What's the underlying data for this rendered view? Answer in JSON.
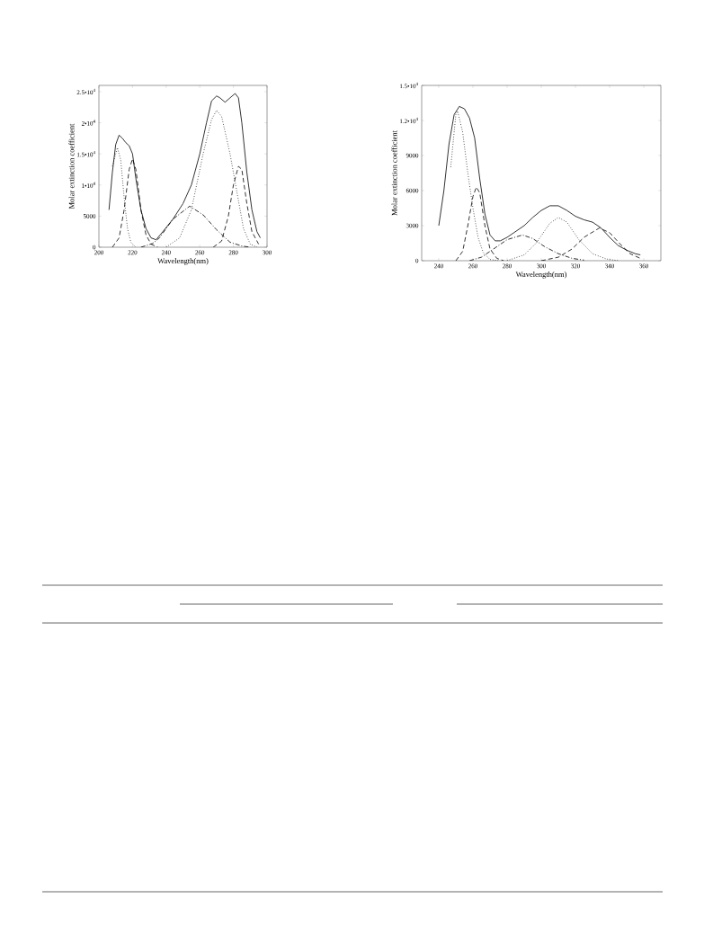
{
  "chart_data": [
    {
      "type": "line",
      "xlabel": "Wavelength(nm)",
      "ylabel": "Molar extinction coefficient",
      "xlim": [
        200,
        300
      ],
      "ylim": [
        0,
        26000
      ],
      "xticks": [
        200,
        220,
        240,
        260,
        280,
        300
      ],
      "yticks": [
        0,
        5000,
        {
          "value": 10000,
          "label": "1•10$^{4}$"
        },
        {
          "value": 15000,
          "label": "1.5•10$^{4}$"
        },
        {
          "value": 20000,
          "label": "2•10$^{4}$"
        },
        {
          "value": 25000,
          "label": "2.5•10$^{4}$"
        }
      ],
      "series": [
        {
          "color": "#000000",
          "line_style": "solid",
          "x": [
            206,
            208,
            210,
            212,
            214,
            216,
            218,
            220,
            222,
            225,
            228,
            231,
            234,
            238,
            244,
            250,
            255,
            260,
            264,
            267,
            270,
            272,
            275,
            278,
            281,
            283,
            285,
            288,
            291,
            294,
            296
          ],
          "values": [
            6000,
            12000,
            16500,
            18000,
            17500,
            16800,
            16300,
            15000,
            11000,
            6000,
            3000,
            1500,
            1200,
            2500,
            4500,
            7000,
            10000,
            15000,
            20000,
            23500,
            24300,
            24000,
            23300,
            24000,
            24700,
            24000,
            20000,
            12000,
            6000,
            2500,
            1500
          ]
        },
        {
          "color": "#000000",
          "line_style": "dotted",
          "x": [
            208,
            211,
            213,
            215,
            217,
            219,
            222
          ],
          "values": [
            13000,
            16000,
            14000,
            8000,
            3000,
            800,
            0
          ]
        },
        {
          "color": "#000000",
          "line_style": "dashed",
          "x": [
            208,
            212,
            215,
            218,
            220,
            222,
            225,
            228,
            231,
            235
          ],
          "values": [
            0,
            1500,
            6000,
            12500,
            14200,
            12500,
            6000,
            2000,
            500,
            0
          ]
        },
        {
          "color": "#000000",
          "line_style": "dashdot",
          "x": [
            225,
            232,
            236,
            244,
            254,
            262,
            270,
            278,
            285,
            290
          ],
          "values": [
            0,
            600,
            1500,
            4500,
            6600,
            5200,
            2800,
            800,
            200,
            0
          ]
        },
        {
          "color": "#000000",
          "line_style": "dotted",
          "x": [
            240,
            248,
            255,
            262,
            267,
            270,
            273,
            278,
            282,
            286,
            290,
            294
          ],
          "values": [
            0,
            1500,
            6000,
            15000,
            20500,
            22000,
            21000,
            15000,
            9000,
            3000,
            500,
            0
          ]
        },
        {
          "color": "#000000",
          "line_style": "dashed",
          "x": [
            268,
            273,
            277,
            280,
            283,
            285,
            288,
            291,
            295
          ],
          "values": [
            0,
            1000,
            5000,
            10000,
            13000,
            12500,
            7000,
            2500,
            500
          ]
        }
      ]
    },
    {
      "type": "line",
      "xlabel": "Wavelength(nm)",
      "ylabel": "Molar extinction coefficient",
      "xlim": [
        230,
        370
      ],
      "ylim": [
        0,
        15000
      ],
      "xticks": [
        240,
        260,
        280,
        300,
        320,
        340,
        360
      ],
      "yticks": [
        0,
        3000,
        6000,
        9000,
        {
          "value": 12000,
          "label": "1.2•10$^{4}$"
        },
        {
          "value": 15000,
          "label": "1.5•10$^{4}$"
        }
      ],
      "series": [
        {
          "color": "#000000",
          "line_style": "solid",
          "x": [
            240,
            243,
            246,
            249,
            252,
            255,
            258,
            261,
            264,
            267,
            270,
            273,
            276,
            280,
            285,
            290,
            295,
            300,
            305,
            310,
            315,
            320,
            325,
            330,
            335,
            340,
            345,
            350,
            355,
            358
          ],
          "values": [
            3000,
            6000,
            10000,
            12500,
            13200,
            13000,
            12200,
            10500,
            7000,
            4000,
            2200,
            1700,
            1700,
            2000,
            2500,
            3000,
            3700,
            4300,
            4700,
            4700,
            4300,
            3800,
            3500,
            3300,
            2800,
            2000,
            1300,
            900,
            600,
            500
          ]
        },
        {
          "color": "#000000",
          "line_style": "dotted",
          "x": [
            247,
            250,
            251,
            254,
            257,
            260,
            263,
            266,
            270,
            275
          ],
          "values": [
            8000,
            12500,
            12800,
            11000,
            7500,
            4500,
            2000,
            700,
            100,
            0
          ]
        },
        {
          "color": "#000000",
          "line_style": "dashed",
          "x": [
            250,
            254,
            257,
            260,
            262,
            264,
            267,
            270,
            274,
            278
          ],
          "values": [
            0,
            800,
            3000,
            5500,
            6300,
            5800,
            3000,
            1000,
            200,
            0
          ]
        },
        {
          "color": "#000000",
          "line_style": "dashdot",
          "x": [
            258,
            265,
            272,
            280,
            289,
            295,
            302,
            310,
            318,
            325
          ],
          "values": [
            0,
            300,
            1000,
            1800,
            2200,
            1900,
            1200,
            600,
            200,
            50
          ]
        },
        {
          "color": "#000000",
          "line_style": "dotted",
          "x": [
            280,
            290,
            297,
            305,
            310,
            315,
            322,
            330,
            338,
            345
          ],
          "values": [
            0,
            500,
            1500,
            3200,
            3700,
            3300,
            1800,
            600,
            150,
            0
          ]
        },
        {
          "color": "#000000",
          "line_style": "dashed",
          "x": [
            300,
            310,
            318,
            325,
            334,
            340,
            347,
            352,
            358
          ],
          "values": [
            0,
            300,
            1000,
            2000,
            2800,
            2400,
            1300,
            600,
            200
          ]
        }
      ]
    }
  ]
}
